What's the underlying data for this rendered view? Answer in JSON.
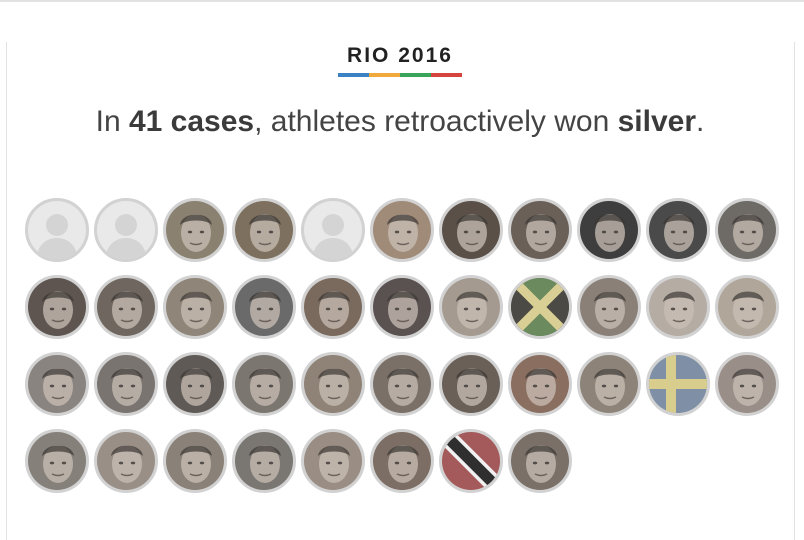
{
  "kicker": {
    "title": "RIO 2016",
    "bar_colors": [
      "#3b82c4",
      "#f0a93a",
      "#3aa55a",
      "#d6453d"
    ]
  },
  "headline": {
    "prefix": "In ",
    "count": "41 cases",
    "middle": ", athletes retroactively won ",
    "medal": "silver",
    "suffix": "."
  },
  "athletes": [
    {
      "kind": "placeholder"
    },
    {
      "kind": "placeholder"
    },
    {
      "kind": "photo",
      "tone": "#8a8170"
    },
    {
      "kind": "photo",
      "tone": "#7d705e"
    },
    {
      "kind": "placeholder"
    },
    {
      "kind": "photo",
      "tone": "#a08a78"
    },
    {
      "kind": "photo",
      "tone": "#5a5048"
    },
    {
      "kind": "photo",
      "tone": "#6a6058"
    },
    {
      "kind": "photo",
      "tone": "#3e3e3e"
    },
    {
      "kind": "photo",
      "tone": "#4a4a4a"
    },
    {
      "kind": "photo",
      "tone": "#6e6a66"
    },
    {
      "kind": "photo",
      "tone": "#5e5550"
    },
    {
      "kind": "photo",
      "tone": "#6f675f"
    },
    {
      "kind": "photo",
      "tone": "#8f8578"
    },
    {
      "kind": "photo",
      "tone": "#6a6a6a"
    },
    {
      "kind": "photo",
      "tone": "#7a6a5e"
    },
    {
      "kind": "photo",
      "tone": "#5a5250"
    },
    {
      "kind": "photo",
      "tone": "#a59a90"
    },
    {
      "kind": "flag",
      "flag": "jamaica"
    },
    {
      "kind": "photo",
      "tone": "#8a8078"
    },
    {
      "kind": "photo",
      "tone": "#b5aca4"
    },
    {
      "kind": "photo",
      "tone": "#b0a69a"
    },
    {
      "kind": "photo",
      "tone": "#8a8480"
    },
    {
      "kind": "photo",
      "tone": "#7a7470"
    },
    {
      "kind": "photo",
      "tone": "#5f5a55"
    },
    {
      "kind": "photo",
      "tone": "#7c7670"
    },
    {
      "kind": "photo",
      "tone": "#8f8276"
    },
    {
      "kind": "photo",
      "tone": "#7a7068"
    },
    {
      "kind": "photo",
      "tone": "#6a6058"
    },
    {
      "kind": "photo",
      "tone": "#8a6e60"
    },
    {
      "kind": "photo",
      "tone": "#8d8378"
    },
    {
      "kind": "flag",
      "flag": "sweden"
    },
    {
      "kind": "photo",
      "tone": "#9a8e88"
    },
    {
      "kind": "photo",
      "tone": "#85807a"
    },
    {
      "kind": "photo",
      "tone": "#9a8f86"
    },
    {
      "kind": "photo",
      "tone": "#8a8278"
    },
    {
      "kind": "photo",
      "tone": "#7a7672"
    },
    {
      "kind": "photo",
      "tone": "#9a8e84"
    },
    {
      "kind": "photo",
      "tone": "#7c6e64"
    },
    {
      "kind": "flag",
      "flag": "trinidad-and-tobago"
    },
    {
      "kind": "photo",
      "tone": "#7a7068"
    }
  ]
}
